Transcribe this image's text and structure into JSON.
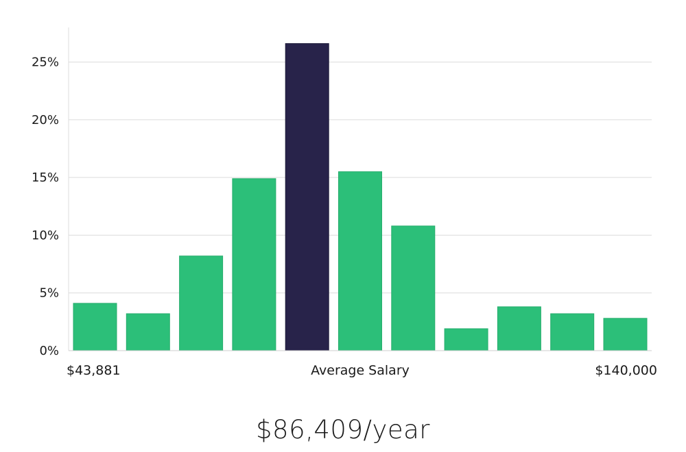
{
  "chart_data": {
    "type": "bar",
    "title": "",
    "xlabel": "Average Salary",
    "ylabel": "",
    "ylim": [
      0,
      0.28
    ],
    "yticks": [
      0,
      0.05,
      0.1,
      0.15,
      0.2,
      0.25
    ],
    "ytick_labels": [
      "0%",
      "5%",
      "10%",
      "15%",
      "20%",
      "25%"
    ],
    "x_min_label": "$43,881",
    "x_max_label": "$140,000",
    "values": [
      0.041,
      0.032,
      0.082,
      0.149,
      0.266,
      0.155,
      0.108,
      0.019,
      0.038,
      0.032,
      0.028
    ],
    "highlight_index": 4,
    "bar_color": "#2cbf79",
    "highlight_color": "#28234a",
    "grid": true
  },
  "summary": {
    "average_salary": "$86,409/year"
  }
}
